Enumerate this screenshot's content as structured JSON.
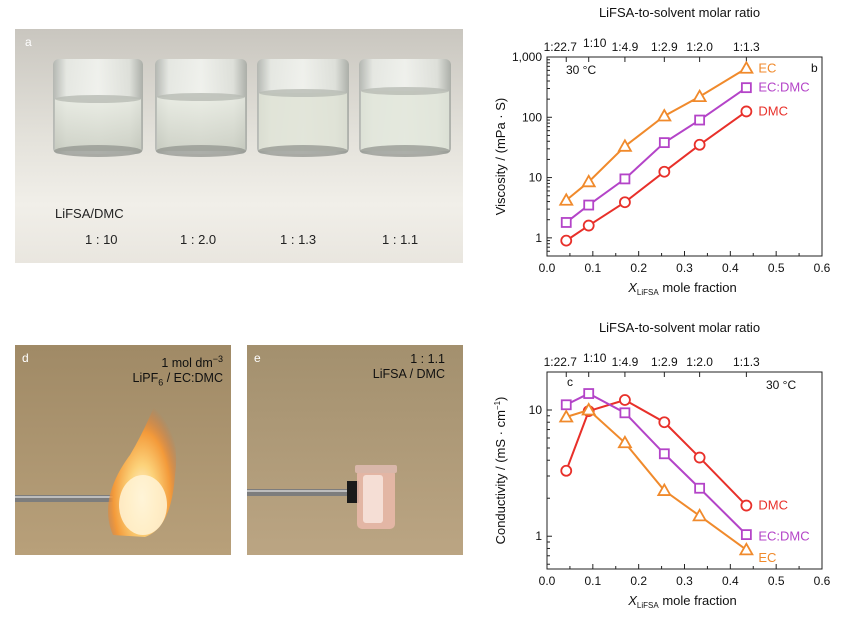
{
  "photo_a": {
    "label": "a",
    "solvent": "LiFSA/DMC",
    "ratios": [
      "1 : 10",
      "1 : 2.0",
      "1 : 1.3",
      "1 : 1.1"
    ]
  },
  "photo_d": {
    "label": "d",
    "line1": "1 mol dm",
    "line1_sup": "−3",
    "line2_pre": "LiPF",
    "line2_sub": "6",
    "line2_post": " / EC:DMC"
  },
  "photo_e": {
    "label": "e",
    "line1": "1 : 1.1",
    "line2": "LiFSA / DMC"
  },
  "colors": {
    "EC": "#f08a2c",
    "EC:DMC": "#b444c8",
    "DMC": "#e8302a"
  },
  "chart_data": [
    {
      "panel_label": "b",
      "type": "line",
      "title": "LiFSA-to-solvent molar ratio",
      "annotation": "30 °C",
      "top_ticks": [
        {
          "x": 0.042,
          "label": "1:22.7"
        },
        {
          "x": 0.091,
          "label": "1:10"
        },
        {
          "x": 0.17,
          "label": "1:4.9"
        },
        {
          "x": 0.256,
          "label": "1:2.9"
        },
        {
          "x": 0.333,
          "label": "1:2.0"
        },
        {
          "x": 0.435,
          "label": "1:1.3"
        }
      ],
      "xlabel_main": "X",
      "xlabel_sub": "LiFSA",
      "xlabel_rest": " mole fraction",
      "ylabel": "Viscosity / (mPa · S)",
      "xlim": [
        0.0,
        0.6
      ],
      "ylim": [
        0.5,
        1000
      ],
      "yscale": "log",
      "xticks": [
        0.0,
        0.1,
        0.2,
        0.3,
        0.4,
        0.5,
        0.6
      ],
      "xtick_labels": [
        "0.0",
        "0.1",
        "0.2",
        "0.3",
        "0.4",
        "0.5",
        "0.6"
      ],
      "yticks": [
        1,
        10,
        100,
        1000
      ],
      "ytick_labels": [
        "1",
        "10",
        "100",
        "1,000"
      ],
      "x": [
        0.042,
        0.091,
        0.17,
        0.256,
        0.333,
        0.435
      ],
      "series": [
        {
          "name": "EC",
          "marker": "triangle",
          "values": [
            4.2,
            8.5,
            33,
            105,
            220,
            650
          ]
        },
        {
          "name": "EC:DMC",
          "marker": "square",
          "values": [
            1.8,
            3.5,
            9.5,
            38,
            90,
            310
          ]
        },
        {
          "name": "DMC",
          "marker": "circle",
          "values": [
            0.9,
            1.6,
            3.9,
            12.5,
            35,
            125
          ]
        }
      ]
    },
    {
      "panel_label": "c",
      "type": "line",
      "title": "LiFSA-to-solvent molar ratio",
      "annotation": "30 °C",
      "top_ticks": [
        {
          "x": 0.042,
          "label": "1:22.7"
        },
        {
          "x": 0.091,
          "label": "1:10"
        },
        {
          "x": 0.17,
          "label": "1:4.9"
        },
        {
          "x": 0.256,
          "label": "1:2.9"
        },
        {
          "x": 0.333,
          "label": "1:2.0"
        },
        {
          "x": 0.435,
          "label": "1:1.3"
        }
      ],
      "xlabel_main": "X",
      "xlabel_sub": "LiFSA",
      "xlabel_rest": " mole fraction",
      "ylabel": "Conductivity / (mS · cm",
      "ylabel_sup": "−1",
      "ylabel_end": ")",
      "xlim": [
        0.0,
        0.6
      ],
      "ylim": [
        0.55,
        20
      ],
      "yscale": "log",
      "xticks": [
        0.0,
        0.1,
        0.2,
        0.3,
        0.4,
        0.5,
        0.6
      ],
      "xtick_labels": [
        "0.0",
        "0.1",
        "0.2",
        "0.3",
        "0.4",
        "0.5",
        "0.6"
      ],
      "yticks": [
        1,
        10
      ],
      "ytick_labels": [
        "1",
        "10"
      ],
      "x": [
        0.042,
        0.091,
        0.17,
        0.256,
        0.333,
        0.435
      ],
      "series": [
        {
          "name": "DMC",
          "marker": "circle",
          "values": [
            3.3,
            9.8,
            12.0,
            8.0,
            4.2,
            1.75
          ]
        },
        {
          "name": "EC:DMC",
          "marker": "square",
          "values": [
            11.0,
            13.5,
            9.5,
            4.5,
            2.4,
            1.03
          ]
        },
        {
          "name": "EC",
          "marker": "triangle",
          "values": [
            8.8,
            10.0,
            5.5,
            2.3,
            1.45,
            0.78
          ]
        }
      ]
    }
  ]
}
